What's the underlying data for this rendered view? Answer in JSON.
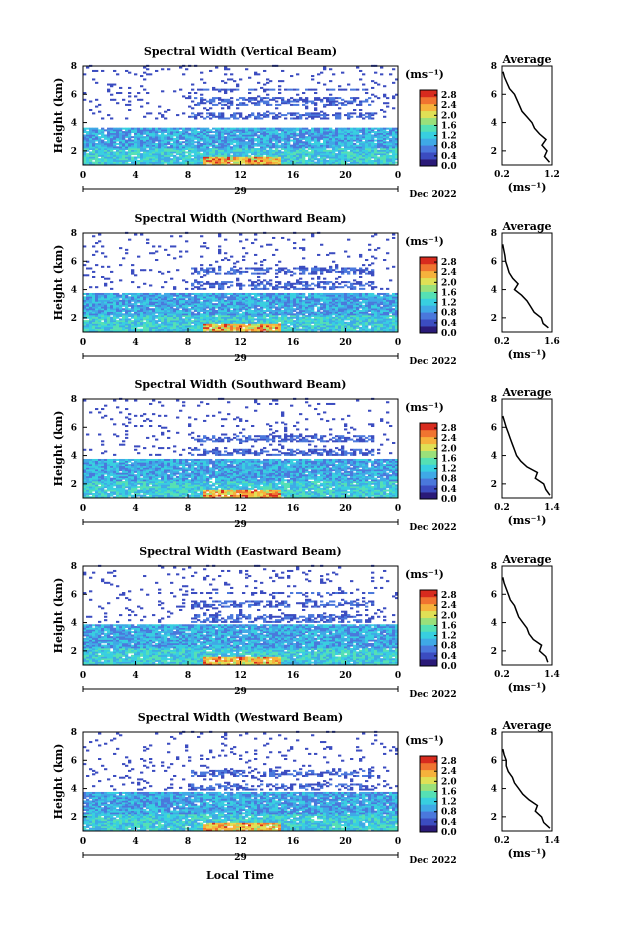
{
  "figure": {
    "xlabel": "Local Time",
    "date_label": "Dec 2022",
    "day_label": "29",
    "colorbar_unit": "(ms⁻¹)",
    "avg_unit": "(ms⁻¹)",
    "avg_title": "Average",
    "colorscale": [
      "#2a1a78",
      "#3b4cc0",
      "#4a78dc",
      "#3fa9e6",
      "#38cfe0",
      "#55e0b4",
      "#9ae07a",
      "#e0e055",
      "#f6b23c",
      "#f07430",
      "#d82b1e"
    ]
  },
  "chart_data": [
    {
      "type": "heatmap",
      "title": "Spectral Width (Vertical Beam)",
      "ylabel": "Height (km)",
      "x_ticks": [
        "0",
        "4",
        "8",
        "12",
        "16",
        "20",
        "0"
      ],
      "y_ticks": [
        "2",
        "4",
        "6",
        "8"
      ],
      "xlim": [
        0,
        24
      ],
      "ylim": [
        1,
        8
      ],
      "colorbar": {
        "ticks": [
          "0.0",
          "0.4",
          "0.8",
          "1.2",
          "1.6",
          "2.0",
          "2.4",
          "2.8"
        ],
        "range": [
          0,
          3.0
        ]
      },
      "layers": {
        "low_top": 3.6,
        "mid": [
          4.2,
          6.4
        ],
        "sparse_from": 6.4
      },
      "average": {
        "xlim": [
          0.2,
          1.2
        ],
        "x_ticks": [
          "0.2",
          "1.2"
        ],
        "y_ticks": [
          "2",
          "4",
          "6",
          "8"
        ],
        "ylim": [
          1,
          8
        ],
        "profile": [
          [
            1.2,
            1.15
          ],
          [
            1.6,
            1.05
          ],
          [
            2.0,
            1.1
          ],
          [
            2.4,
            1.0
          ],
          [
            2.8,
            1.08
          ],
          [
            3.2,
            0.95
          ],
          [
            3.6,
            0.85
          ],
          [
            4.0,
            0.8
          ],
          [
            4.4,
            0.7
          ],
          [
            4.8,
            0.6
          ],
          [
            5.2,
            0.55
          ],
          [
            5.6,
            0.5
          ],
          [
            6.0,
            0.45
          ],
          [
            6.4,
            0.35
          ],
          [
            6.8,
            0.3
          ],
          [
            7.2,
            0.25
          ],
          [
            7.6,
            0.22
          ]
        ]
      }
    },
    {
      "type": "heatmap",
      "title": "Spectral Width (Northward Beam)",
      "ylabel": "Height (km)",
      "x_ticks": [
        "0",
        "4",
        "8",
        "12",
        "16",
        "20",
        "0"
      ],
      "y_ticks": [
        "2",
        "4",
        "6",
        "8"
      ],
      "xlim": [
        0,
        24
      ],
      "ylim": [
        1,
        8
      ],
      "colorbar": {
        "ticks": [
          "0.0",
          "0.4",
          "0.8",
          "1.2",
          "1.6",
          "2.0",
          "2.4",
          "2.8"
        ],
        "range": [
          0,
          3.0
        ]
      },
      "layers": {
        "low_top": 3.7,
        "mid": [
          4.0,
          5.8
        ],
        "sparse_from": 5.8
      },
      "average": {
        "xlim": [
          0.2,
          1.6
        ],
        "x_ticks": [
          "0.2",
          "1.6"
        ],
        "y_ticks": [
          "2",
          "4",
          "6",
          "8"
        ],
        "ylim": [
          1,
          8
        ],
        "profile": [
          [
            1.3,
            1.5
          ],
          [
            1.6,
            1.35
          ],
          [
            2.0,
            1.3
          ],
          [
            2.4,
            1.1
          ],
          [
            2.8,
            1.0
          ],
          [
            3.2,
            0.9
          ],
          [
            3.6,
            0.75
          ],
          [
            4.0,
            0.55
          ],
          [
            4.4,
            0.65
          ],
          [
            4.8,
            0.5
          ],
          [
            5.2,
            0.4
          ],
          [
            5.6,
            0.35
          ],
          [
            6.0,
            0.3
          ],
          [
            6.4,
            0.28
          ],
          [
            6.8,
            0.25
          ],
          [
            7.2,
            0.22
          ]
        ]
      }
    },
    {
      "type": "heatmap",
      "title": "Spectral Width (Southward Beam)",
      "ylabel": "Height (km)",
      "x_ticks": [
        "0",
        "4",
        "8",
        "12",
        "16",
        "20",
        "0"
      ],
      "y_ticks": [
        "2",
        "4",
        "6",
        "8"
      ],
      "xlim": [
        0,
        24
      ],
      "ylim": [
        1,
        8
      ],
      "colorbar": {
        "ticks": [
          "0.0",
          "0.4",
          "0.8",
          "1.2",
          "1.6",
          "2.0",
          "2.4",
          "2.8"
        ],
        "range": [
          0,
          3.0
        ]
      },
      "layers": {
        "low_top": 3.7,
        "mid": [
          3.9,
          5.5
        ],
        "sparse_from": 5.5
      },
      "average": {
        "xlim": [
          0.2,
          1.4
        ],
        "x_ticks": [
          "0.2",
          "1.4"
        ],
        "y_ticks": [
          "2",
          "4",
          "6",
          "8"
        ],
        "ylim": [
          1,
          8
        ],
        "profile": [
          [
            1.2,
            1.35
          ],
          [
            1.6,
            1.25
          ],
          [
            2.0,
            1.2
          ],
          [
            2.4,
            1.0
          ],
          [
            2.8,
            1.05
          ],
          [
            3.2,
            0.8
          ],
          [
            3.6,
            0.65
          ],
          [
            4.0,
            0.55
          ],
          [
            4.4,
            0.5
          ],
          [
            4.8,
            0.45
          ],
          [
            5.2,
            0.4
          ],
          [
            5.6,
            0.35
          ],
          [
            6.0,
            0.3
          ],
          [
            6.4,
            0.26
          ],
          [
            6.8,
            0.22
          ]
        ]
      }
    },
    {
      "type": "heatmap",
      "title": "Spectral Width (Eastward Beam)",
      "ylabel": "Height (km)",
      "x_ticks": [
        "0",
        "4",
        "8",
        "12",
        "16",
        "20",
        "0"
      ],
      "y_ticks": [
        "2",
        "4",
        "6",
        "8"
      ],
      "xlim": [
        0,
        24
      ],
      "ylim": [
        1,
        8
      ],
      "colorbar": {
        "ticks": [
          "0.0",
          "0.4",
          "0.8",
          "1.2",
          "1.6",
          "2.0",
          "2.4",
          "2.8"
        ],
        "range": [
          0,
          3.0
        ]
      },
      "layers": {
        "low_top": 3.8,
        "mid": [
          4.0,
          6.1
        ],
        "sparse_from": 6.1
      },
      "average": {
        "xlim": [
          0.2,
          1.4
        ],
        "x_ticks": [
          "0.2",
          "1.4"
        ],
        "y_ticks": [
          "2",
          "4",
          "6",
          "8"
        ],
        "ylim": [
          1,
          8
        ],
        "profile": [
          [
            1.2,
            1.3
          ],
          [
            1.6,
            1.25
          ],
          [
            2.0,
            1.1
          ],
          [
            2.4,
            1.15
          ],
          [
            2.8,
            0.95
          ],
          [
            3.2,
            0.85
          ],
          [
            3.6,
            0.8
          ],
          [
            4.0,
            0.7
          ],
          [
            4.4,
            0.6
          ],
          [
            4.8,
            0.55
          ],
          [
            5.2,
            0.5
          ],
          [
            5.6,
            0.4
          ],
          [
            6.0,
            0.35
          ],
          [
            6.4,
            0.3
          ],
          [
            6.8,
            0.25
          ],
          [
            7.2,
            0.22
          ]
        ]
      }
    },
    {
      "type": "heatmap",
      "title": "Spectral Width (Westward Beam)",
      "ylabel": "Height (km)",
      "x_ticks": [
        "0",
        "4",
        "8",
        "12",
        "16",
        "20",
        "0"
      ],
      "y_ticks": [
        "2",
        "4",
        "6",
        "8"
      ],
      "xlim": [
        0,
        24
      ],
      "ylim": [
        1,
        8
      ],
      "colorbar": {
        "ticks": [
          "0.0",
          "0.4",
          "0.8",
          "1.2",
          "1.6",
          "2.0",
          "2.4",
          "2.8"
        ],
        "range": [
          0,
          3.0
        ]
      },
      "layers": {
        "low_top": 3.7,
        "mid": [
          3.8,
          5.4
        ],
        "sparse_from": 5.4
      },
      "average": {
        "xlim": [
          0.2,
          1.4
        ],
        "x_ticks": [
          "0.2",
          "1.4"
        ],
        "y_ticks": [
          "2",
          "4",
          "6",
          "8"
        ],
        "ylim": [
          1,
          8
        ],
        "profile": [
          [
            1.2,
            1.35
          ],
          [
            1.6,
            1.2
          ],
          [
            2.0,
            1.15
          ],
          [
            2.4,
            1.0
          ],
          [
            2.8,
            1.05
          ],
          [
            3.2,
            0.85
          ],
          [
            3.6,
            0.7
          ],
          [
            4.0,
            0.6
          ],
          [
            4.4,
            0.5
          ],
          [
            4.8,
            0.45
          ],
          [
            5.2,
            0.35
          ],
          [
            5.6,
            0.3
          ],
          [
            6.0,
            0.3
          ],
          [
            6.4,
            0.25
          ],
          [
            6.8,
            0.22
          ]
        ]
      }
    }
  ]
}
